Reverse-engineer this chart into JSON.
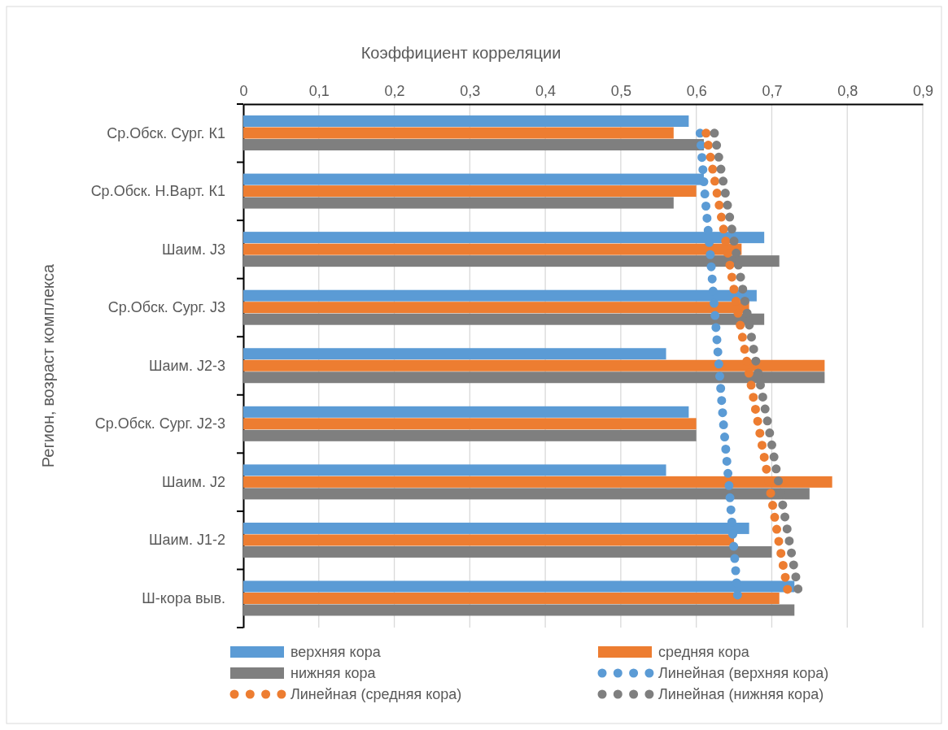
{
  "chart_data": {
    "type": "bar",
    "orientation": "horizontal",
    "xlabel": "Коэффициент корреляции",
    "ylabel": "Регион, возраст комплекса",
    "categories": [
      "Ср.Обск. Сург. К1",
      "Ср.Обск. Н.Варт. К1",
      "Шаим. J3",
      "Ср.Обск. Сург. J3",
      "Шаим. J2-3",
      "Ср.Обск. Сург. J2-3",
      "Шаим. J2",
      "Шаим. J1-2",
      "Ш-кора выв."
    ],
    "xlim": [
      0,
      0.9
    ],
    "xticks": [
      {
        "value": 0,
        "label": "0"
      },
      {
        "value": 0.1,
        "label": "0,1"
      },
      {
        "value": 0.2,
        "label": "0,2"
      },
      {
        "value": 0.3,
        "label": "0,3"
      },
      {
        "value": 0.4,
        "label": "0,4"
      },
      {
        "value": 0.5,
        "label": "0,5"
      },
      {
        "value": 0.6,
        "label": "0,6"
      },
      {
        "value": 0.7,
        "label": "0,7"
      },
      {
        "value": 0.8,
        "label": "0,8"
      },
      {
        "value": 0.9,
        "label": "0,9"
      }
    ],
    "grid": "x",
    "legend": "bottom",
    "series": [
      {
        "name": "верхняя кора",
        "color": "#5b9bd5",
        "values": [
          0.59,
          0.61,
          0.69,
          0.68,
          0.56,
          0.59,
          0.56,
          0.67,
          0.73
        ]
      },
      {
        "name": "средняя кора",
        "color": "#ed7d31",
        "values": [
          0.57,
          0.6,
          0.66,
          0.67,
          0.77,
          0.6,
          0.78,
          0.65,
          0.71
        ]
      },
      {
        "name": "нижняя кора",
        "color": "#7f7f7f",
        "values": [
          0.61,
          0.57,
          0.71,
          0.69,
          0.77,
          0.6,
          0.75,
          0.7,
          0.73
        ]
      },
      {
        "name": "Линейная (верхняя кора)",
        "type": "line",
        "line_style": "dotted",
        "color": "#5b9bd5",
        "values": [
          0.605,
          0.611,
          0.618,
          0.624,
          0.63,
          0.636,
          0.643,
          0.649,
          0.655
        ]
      },
      {
        "name": "Линейная (средняя кора)",
        "type": "line",
        "line_style": "dotted",
        "color": "#ed7d31",
        "values": [
          0.613,
          0.627,
          0.641,
          0.654,
          0.668,
          0.682,
          0.696,
          0.709,
          0.723
        ]
      },
      {
        "name": "Линейная (нижняя кора)",
        "type": "line",
        "line_style": "dotted",
        "color": "#7f7f7f",
        "values": [
          0.624,
          0.638,
          0.652,
          0.666,
          0.68,
          0.695,
          0.709,
          0.723,
          0.737
        ]
      }
    ]
  }
}
